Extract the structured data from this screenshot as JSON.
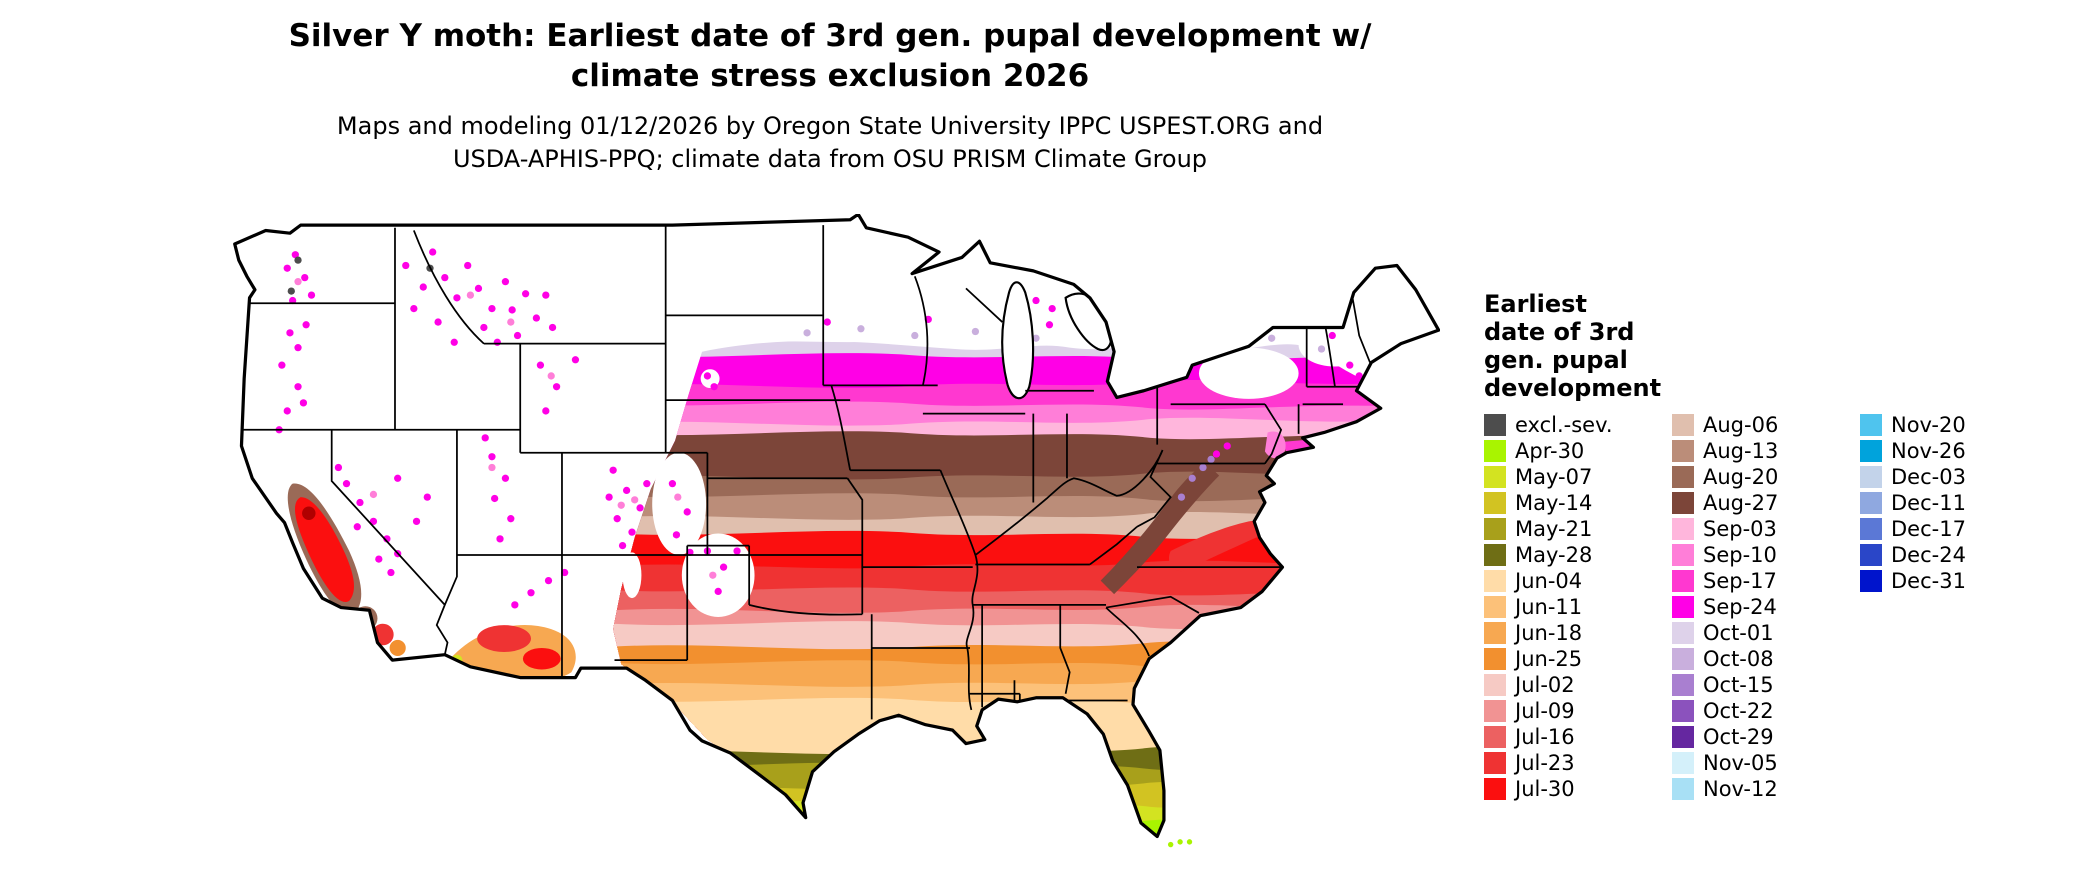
{
  "title": {
    "lines": [
      "Silver Y moth: Earliest date of 3rd gen. pupal development w/",
      "climate stress exclusion 2026"
    ]
  },
  "subtitle": {
    "lines": [
      "Maps and modeling 01/12/2026 by Oregon State University IPPC USPEST.ORG and",
      "USDA-APHIS-PPQ; climate data from OSU PRISM Climate Group"
    ]
  },
  "map": {
    "area": "Contiguous United States",
    "type": "choropleth date map"
  },
  "legend": {
    "title_lines": [
      "Earliest",
      "date of 3rd",
      "gen. pupal",
      "development"
    ],
    "columns": [
      [
        "excl.-sev.",
        "Apr-30",
        "May-07",
        "May-14",
        "May-21",
        "May-28",
        "Jun-04",
        "Jun-11",
        "Jun-18",
        "Jun-25",
        "Jul-02",
        "Jul-09",
        "Jul-16",
        "Jul-23",
        "Jul-30"
      ],
      [
        "Aug-06",
        "Aug-13",
        "Aug-20",
        "Aug-27",
        "Sep-03",
        "Sep-10",
        "Sep-17",
        "Sep-24",
        "Oct-01",
        "Oct-08",
        "Oct-15",
        "Oct-22",
        "Oct-29",
        "Nov-05",
        "Nov-12"
      ],
      [
        "Nov-20",
        "Nov-26",
        "Dec-03",
        "Dec-11",
        "Dec-17",
        "Dec-24",
        "Dec-31"
      ]
    ]
  },
  "colors": {
    "excl.-sev.": "#4d4d4d",
    "Apr-30": "#a9f400",
    "May-07": "#d3e321",
    "May-14": "#d2c322",
    "May-21": "#a8a01b",
    "May-28": "#6f6e15",
    "Jun-04": "#ffdca8",
    "Jun-11": "#fcc179",
    "Jun-18": "#f7a851",
    "Jun-25": "#f2902f",
    "Jul-02": "#f6cac4",
    "Jul-09": "#f19393",
    "Jul-16": "#ec6161",
    "Jul-23": "#ef3333",
    "Jul-30": "#fb0f0f",
    "Aug-06": "#e0bfae",
    "Aug-13": "#bb8d79",
    "Aug-20": "#9a6a57",
    "Aug-27": "#7c4539",
    "Sep-03": "#ffb6dc",
    "Sep-10": "#ff7ed8",
    "Sep-17": "#ff38d0",
    "Sep-24": "#ff00e6",
    "Oct-01": "#ded2ea",
    "Oct-08": "#c9afdd",
    "Oct-15": "#a97fd0",
    "Oct-22": "#8b52bd",
    "Oct-29": "#6527a0",
    "Nov-05": "#d4f0fa",
    "Nov-12": "#a8e0f5",
    "Nov-20": "#4fc4ee",
    "Nov-26": "#00a3dc",
    "Dec-03": "#c3d3ea",
    "Dec-11": "#8fa8e0",
    "Dec-17": "#5b78d6",
    "Dec-24": "#2a46c8",
    "Dec-31": "#0014cc"
  }
}
